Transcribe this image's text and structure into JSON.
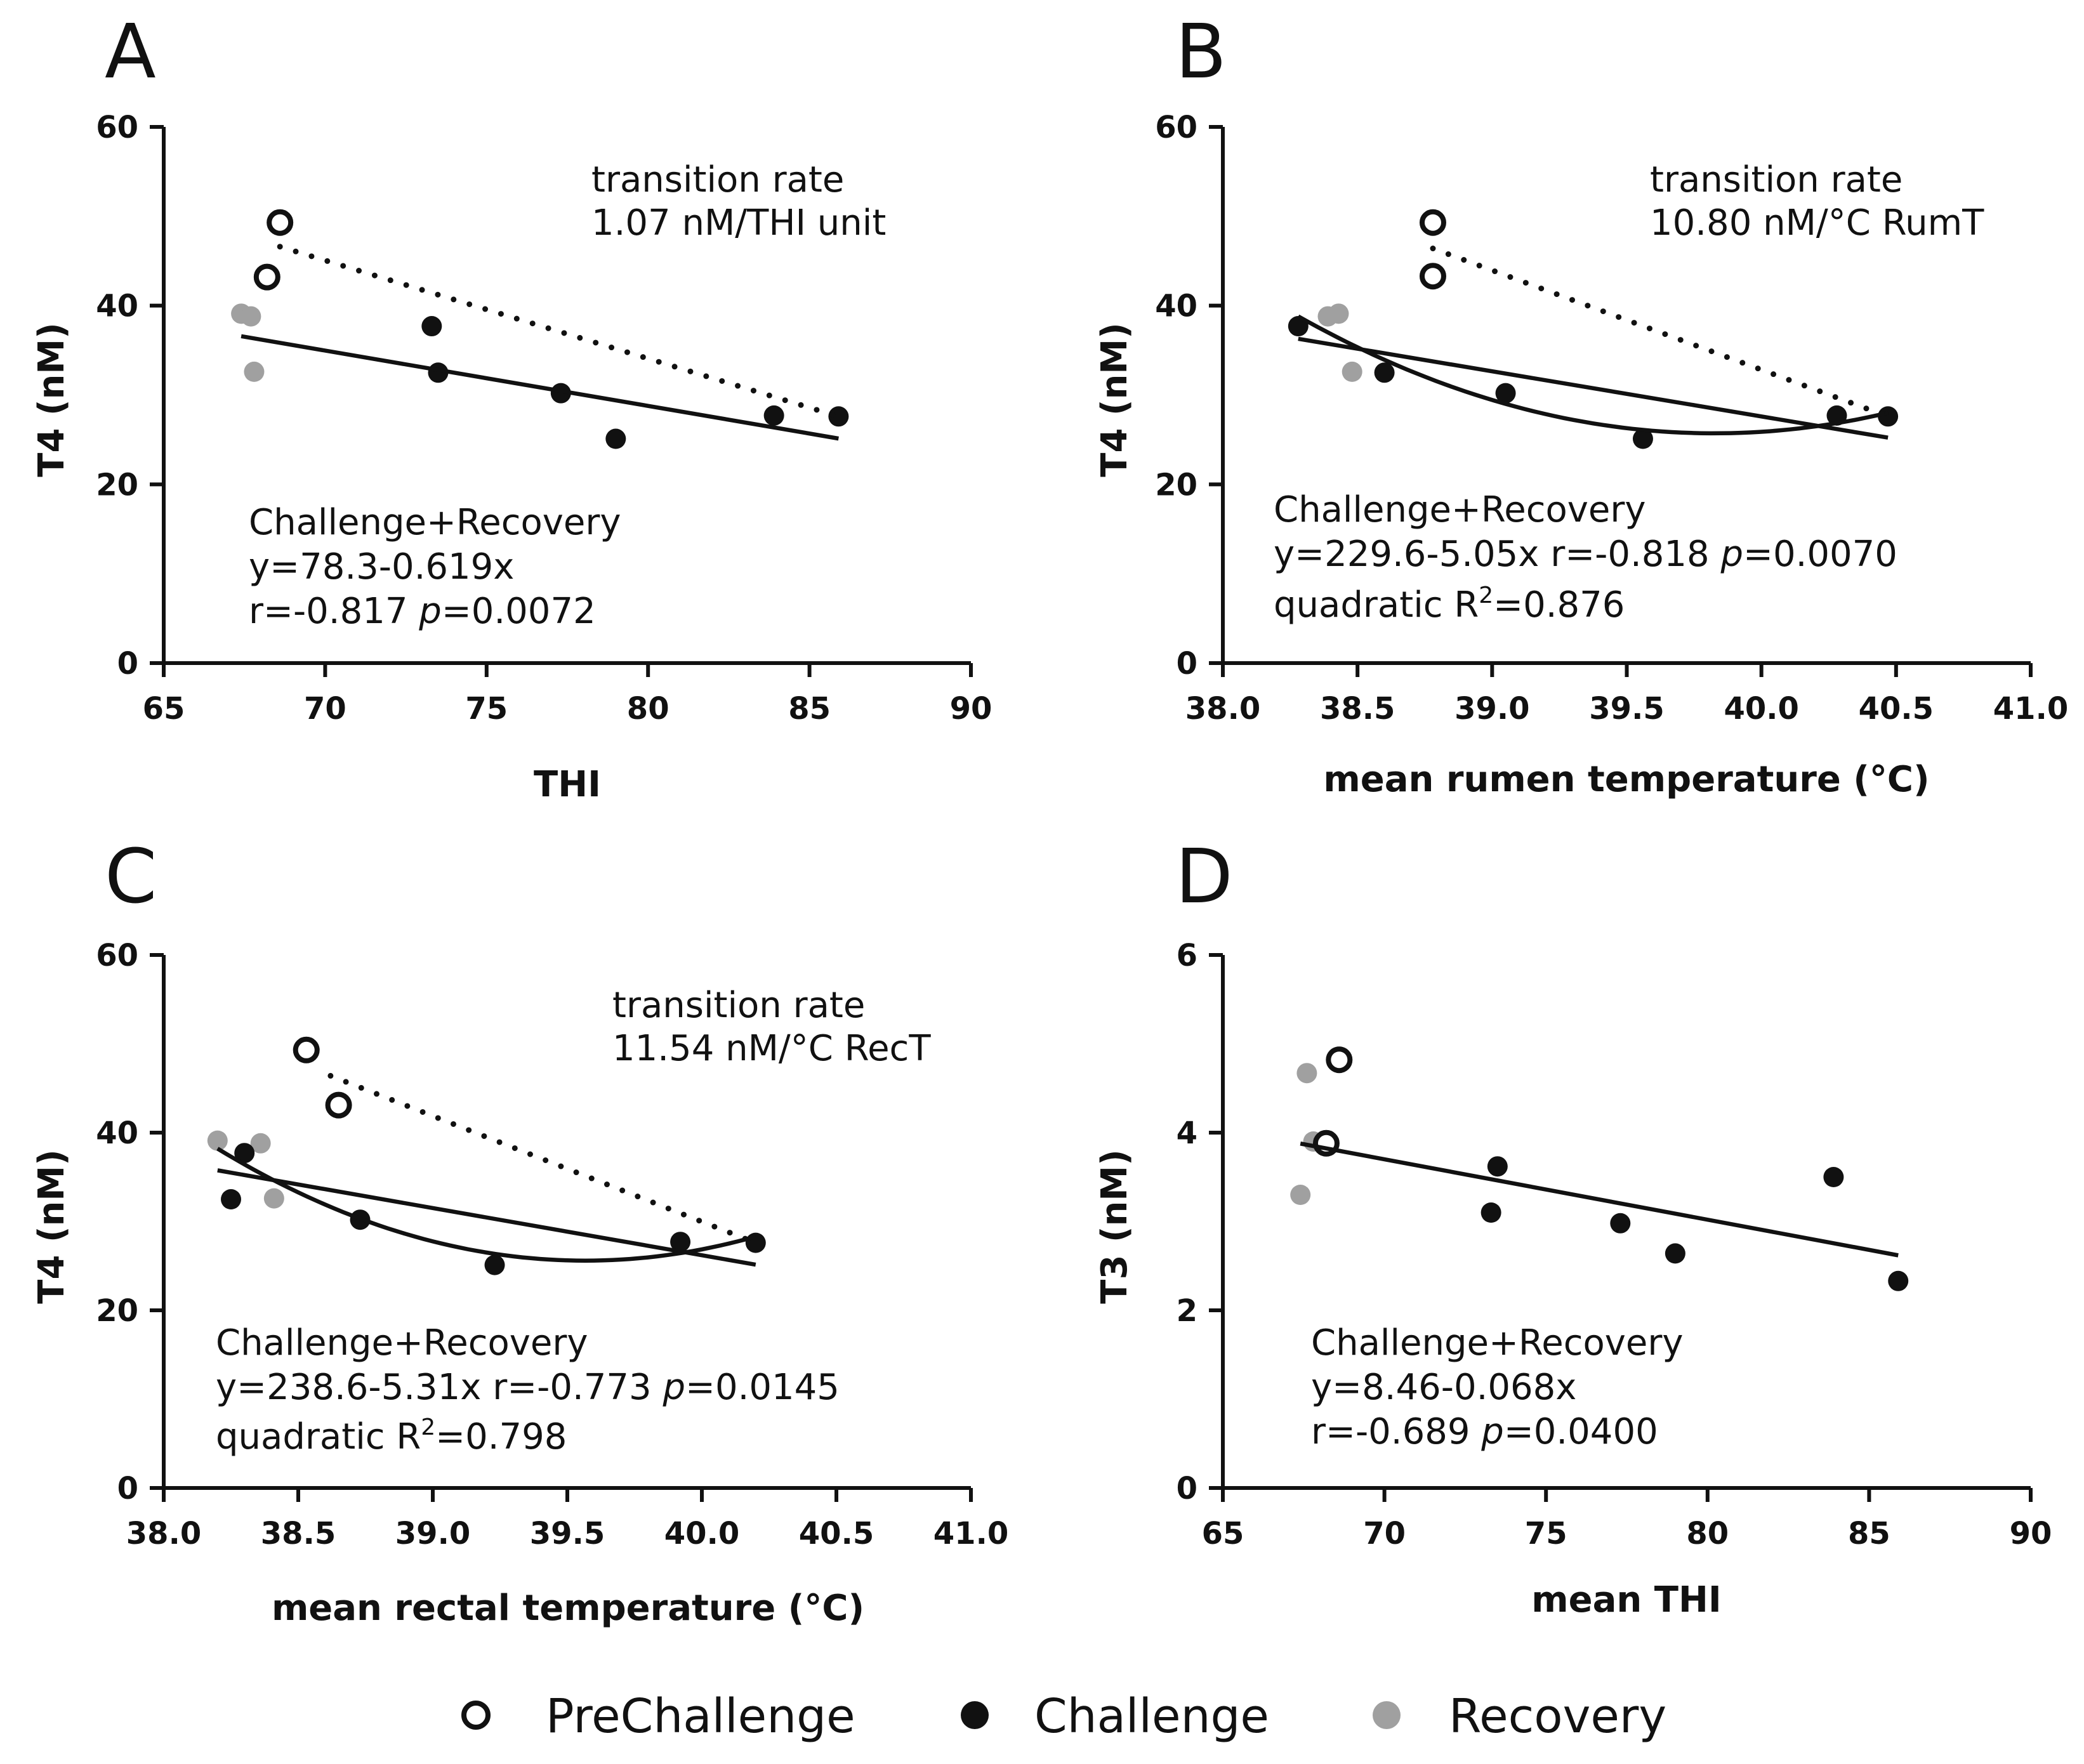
{
  "legend": {
    "items": [
      {
        "key": "prechallenge",
        "label": "PreChallenge"
      },
      {
        "key": "challenge",
        "label": "Challenge"
      },
      {
        "key": "recovery",
        "label": "Recovery"
      }
    ]
  },
  "colors": {
    "prechallenge": "#111111",
    "challenge": "#111111",
    "recovery": "#a0a0a0",
    "axis": "#111111"
  },
  "chart_data": [
    {
      "panel": "A",
      "type": "scatter",
      "xlabel": "THI",
      "ylabel": "T4 (nM)",
      "xlim": [
        65,
        90
      ],
      "ylim": [
        0,
        60
      ],
      "xticks": [
        65,
        70,
        75,
        80,
        85,
        90
      ],
      "yticks": [
        0,
        20,
        40,
        60
      ],
      "xtick_labels": [
        "65",
        "70",
        "75",
        "80",
        "85",
        "90"
      ],
      "ytick_labels": [
        "0",
        "20",
        "40",
        "60"
      ],
      "series": [
        {
          "name": "PreChallenge",
          "key": "prechallenge",
          "points": [
            [
              68.2,
              43.2
            ],
            [
              68.6,
              49.3
            ]
          ]
        },
        {
          "name": "Challenge",
          "key": "challenge",
          "points": [
            [
              73.3,
              37.7
            ],
            [
              73.5,
              32.5
            ],
            [
              77.3,
              30.2
            ],
            [
              79.0,
              25.1
            ],
            [
              83.9,
              27.7
            ],
            [
              85.9,
              27.6
            ]
          ]
        },
        {
          "name": "Recovery",
          "key": "recovery",
          "points": [
            [
              67.4,
              39.1
            ],
            [
              67.7,
              38.8
            ],
            [
              67.8,
              32.6
            ]
          ]
        }
      ],
      "lines": [
        {
          "kind": "linear",
          "style": "solid",
          "x": [
            67.4,
            85.9
          ],
          "intercept": 78.3,
          "slope": -0.619
        },
        {
          "kind": "segment",
          "style": "dotted",
          "points": [
            [
              68.6,
              46.6
            ],
            [
              85.9,
              27.6
            ]
          ]
        }
      ],
      "annotations": {
        "transition": [
          "transition rate",
          "1.07 nM/THI unit"
        ],
        "stats": [
          {
            "text": "Challenge+Recovery"
          },
          {
            "text": "y=78.3-0.619x"
          },
          {
            "pre": "r=-0.817 ",
            "ital": "p",
            "post": "=0.0072"
          }
        ]
      }
    },
    {
      "panel": "B",
      "type": "scatter",
      "xlabel": "mean rumen temperature (°C)",
      "ylabel": "T4 (nM)",
      "xlim": [
        38.0,
        41.0
      ],
      "ylim": [
        0,
        60
      ],
      "xticks": [
        38.0,
        38.5,
        39.0,
        39.5,
        40.0,
        40.5,
        41.0
      ],
      "yticks": [
        0,
        20,
        40,
        60
      ],
      "xtick_labels": [
        "38.0",
        "38.5",
        "39.0",
        "39.5",
        "40.0",
        "40.5",
        "41.0"
      ],
      "ytick_labels": [
        "0",
        "20",
        "40",
        "60"
      ],
      "series": [
        {
          "name": "PreChallenge",
          "key": "prechallenge",
          "points": [
            [
              38.78,
              43.3
            ],
            [
              38.78,
              49.3
            ]
          ]
        },
        {
          "name": "Challenge",
          "key": "challenge",
          "points": [
            [
              38.28,
              37.7
            ],
            [
              38.6,
              32.5
            ],
            [
              39.05,
              30.2
            ],
            [
              39.56,
              25.1
            ],
            [
              40.28,
              27.7
            ],
            [
              40.47,
              27.6
            ]
          ]
        },
        {
          "name": "Recovery",
          "key": "recovery",
          "points": [
            [
              38.39,
              38.8
            ],
            [
              38.43,
              39.1
            ],
            [
              38.48,
              32.6
            ]
          ]
        }
      ],
      "lines": [
        {
          "kind": "linear",
          "style": "solid",
          "x": [
            38.28,
            40.47
          ],
          "intercept": 229.6,
          "slope": -5.05
        },
        {
          "kind": "quadratic",
          "style": "solid",
          "x": [
            38.28,
            40.47
          ],
          "through": [
            [
              38.28,
              38.8
            ],
            [
              39.4,
              26.7
            ],
            [
              40.47,
              28.0
            ]
          ]
        },
        {
          "kind": "segment",
          "style": "dotted",
          "points": [
            [
              38.78,
              46.4
            ],
            [
              40.47,
              27.6
            ]
          ]
        }
      ],
      "annotations": {
        "transition": [
          "transition rate",
          "10.80 nM/°C RumT"
        ],
        "stats": [
          {
            "text": "Challenge+Recovery"
          },
          {
            "pre": "y=229.6-5.05x r=-0.818 ",
            "ital": "p",
            "post": "=0.0070"
          },
          {
            "pre": "quadratic R",
            "sup": "2",
            "post": "=0.876"
          }
        ]
      }
    },
    {
      "panel": "C",
      "type": "scatter",
      "xlabel": "mean rectal temperature (°C)",
      "ylabel": "T4 (nM)",
      "xlim": [
        38.0,
        41.0
      ],
      "ylim": [
        0,
        60
      ],
      "xticks": [
        38.0,
        38.5,
        39.0,
        39.5,
        40.0,
        40.5,
        41.0
      ],
      "yticks": [
        0,
        20,
        40,
        60
      ],
      "xtick_labels": [
        "38.0",
        "38.5",
        "39.0",
        "39.5",
        "40.0",
        "40.5",
        "41.0"
      ],
      "ytick_labels": [
        "0",
        "20",
        "40",
        "60"
      ],
      "series": [
        {
          "name": "PreChallenge",
          "key": "prechallenge",
          "points": [
            [
              38.53,
              49.3
            ],
            [
              38.65,
              43.1
            ]
          ]
        },
        {
          "name": "Challenge",
          "key": "challenge",
          "points": [
            [
              38.25,
              32.5
            ],
            [
              38.3,
              37.7
            ],
            [
              38.73,
              30.2
            ],
            [
              39.23,
              25.1
            ],
            [
              39.92,
              27.7
            ],
            [
              40.2,
              27.6
            ]
          ]
        },
        {
          "name": "Recovery",
          "key": "recovery",
          "points": [
            [
              38.2,
              39.1
            ],
            [
              38.36,
              38.8
            ],
            [
              38.41,
              32.6
            ]
          ]
        }
      ],
      "lines": [
        {
          "kind": "linear",
          "style": "solid",
          "x": [
            38.2,
            40.2
          ],
          "intercept": 238.6,
          "slope": -5.31
        },
        {
          "kind": "quadratic",
          "style": "solid",
          "x": [
            38.2,
            40.2
          ],
          "through": [
            [
              38.2,
              38.2
            ],
            [
              39.2,
              26.5
            ],
            [
              40.2,
              28.3
            ]
          ]
        },
        {
          "kind": "segment",
          "style": "dotted",
          "points": [
            [
              38.62,
              46.4
            ],
            [
              40.2,
              27.6
            ]
          ]
        }
      ],
      "annotations": {
        "transition": [
          "transition rate",
          "11.54 nM/°C RecT"
        ],
        "stats": [
          {
            "text": "Challenge+Recovery"
          },
          {
            "pre": "y=238.6-5.31x r=-0.773 ",
            "ital": "p",
            "post": "=0.0145"
          },
          {
            "pre": "quadratic R",
            "sup": "2",
            "post": "=0.798"
          }
        ]
      }
    },
    {
      "panel": "D",
      "type": "scatter",
      "xlabel": "mean THI",
      "ylabel": "T3 (nM)",
      "xlim": [
        65,
        90
      ],
      "ylim": [
        0,
        6
      ],
      "xticks": [
        65,
        70,
        75,
        80,
        85,
        90
      ],
      "yticks": [
        0,
        2,
        4,
        6
      ],
      "xtick_labels": [
        "65",
        "70",
        "75",
        "80",
        "85",
        "90"
      ],
      "ytick_labels": [
        "0",
        "2",
        "4",
        "6"
      ],
      "series": [
        {
          "name": "PreChallenge",
          "key": "prechallenge",
          "points": [
            [
              68.2,
              3.88
            ],
            [
              68.6,
              4.82
            ]
          ]
        },
        {
          "name": "Challenge",
          "key": "challenge",
          "points": [
            [
              73.3,
              3.1
            ],
            [
              73.5,
              3.62
            ],
            [
              77.3,
              2.98
            ],
            [
              79.0,
              2.64
            ],
            [
              83.9,
              3.5
            ],
            [
              85.9,
              2.33
            ]
          ]
        },
        {
          "name": "Recovery",
          "key": "recovery",
          "points": [
            [
              67.4,
              3.3
            ],
            [
              67.6,
              4.67
            ],
            [
              67.8,
              3.9
            ]
          ]
        }
      ],
      "lines": [
        {
          "kind": "linear",
          "style": "solid",
          "x": [
            67.4,
            85.9
          ],
          "intercept": 8.46,
          "slope": -0.068
        }
      ],
      "annotations": {
        "transition": null,
        "stats": [
          {
            "text": "Challenge+Recovery"
          },
          {
            "text": "y=8.46-0.068x"
          },
          {
            "pre": "r=-0.689 ",
            "ital": "p",
            "post": "=0.0400"
          }
        ]
      }
    }
  ]
}
